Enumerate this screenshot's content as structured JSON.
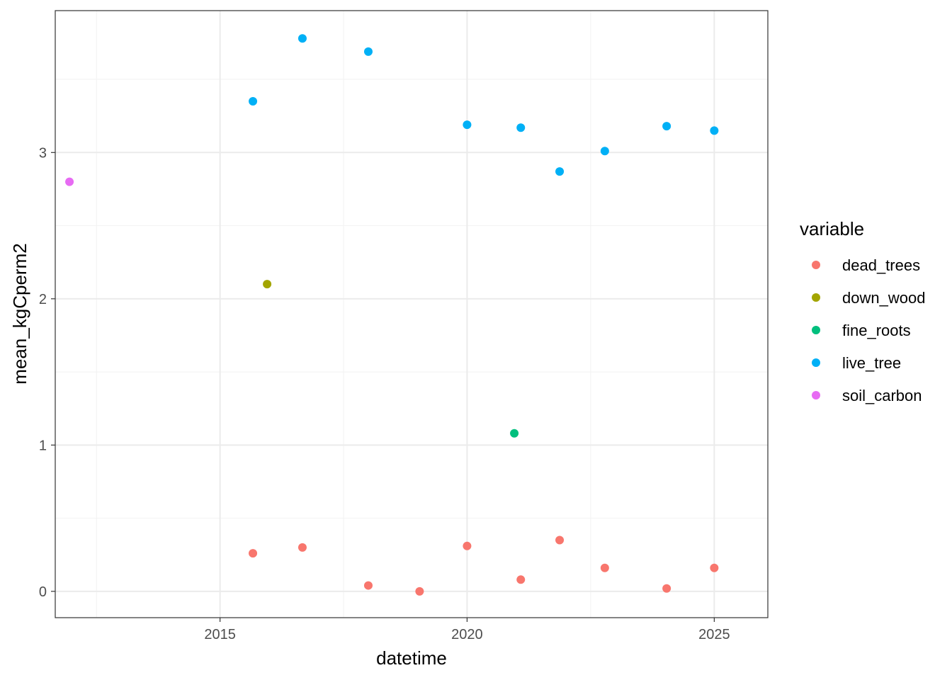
{
  "chart_data": {
    "type": "scatter",
    "xlabel": "datetime",
    "ylabel": "mean_kgCperm2",
    "x_is_date": true,
    "xlim": [
      "2011-09-01",
      "2026-02-01"
    ],
    "ylim": [
      -0.18,
      3.97
    ],
    "x_ticks": [
      {
        "label": "2015",
        "value": "2015-01-01"
      },
      {
        "label": "2020",
        "value": "2020-01-01"
      },
      {
        "label": "2025",
        "value": "2025-01-01"
      }
    ],
    "y_ticks": [
      {
        "label": "0",
        "value": 0
      },
      {
        "label": "1",
        "value": 1
      },
      {
        "label": "2",
        "value": 2
      },
      {
        "label": "3",
        "value": 3
      }
    ],
    "grid": true,
    "legend_title": "variable",
    "legend_position": "right",
    "series": [
      {
        "name": "dead_trees",
        "color": "#F8766D",
        "points": [
          {
            "x": "2015-09-01",
            "y": 0.26
          },
          {
            "x": "2016-09-01",
            "y": 0.3
          },
          {
            "x": "2018-01-01",
            "y": 0.04
          },
          {
            "x": "2019-01-15",
            "y": 0.0
          },
          {
            "x": "2020-01-01",
            "y": 0.31
          },
          {
            "x": "2021-02-01",
            "y": 0.08
          },
          {
            "x": "2021-11-15",
            "y": 0.35
          },
          {
            "x": "2022-10-15",
            "y": 0.16
          },
          {
            "x": "2024-01-15",
            "y": 0.02
          },
          {
            "x": "2025-01-01",
            "y": 0.16
          }
        ]
      },
      {
        "name": "down_wood",
        "color": "#A3A500",
        "points": [
          {
            "x": "2015-12-15",
            "y": 2.1
          }
        ]
      },
      {
        "name": "fine_roots",
        "color": "#00BF7D",
        "points": [
          {
            "x": "2020-12-15",
            "y": 1.08
          }
        ]
      },
      {
        "name": "live_tree",
        "color": "#00B0F6",
        "points": [
          {
            "x": "2015-09-01",
            "y": 3.35
          },
          {
            "x": "2016-09-01",
            "y": 3.78
          },
          {
            "x": "2018-01-01",
            "y": 3.69
          },
          {
            "x": "2020-01-01",
            "y": 3.19
          },
          {
            "x": "2021-02-01",
            "y": 3.17
          },
          {
            "x": "2021-11-15",
            "y": 2.87
          },
          {
            "x": "2022-10-15",
            "y": 3.01
          },
          {
            "x": "2024-01-15",
            "y": 3.18
          },
          {
            "x": "2025-01-01",
            "y": 3.15
          }
        ]
      },
      {
        "name": "soil_carbon",
        "color": "#E76BF3",
        "points": [
          {
            "x": "2011-12-15",
            "y": 2.8
          }
        ]
      }
    ]
  }
}
